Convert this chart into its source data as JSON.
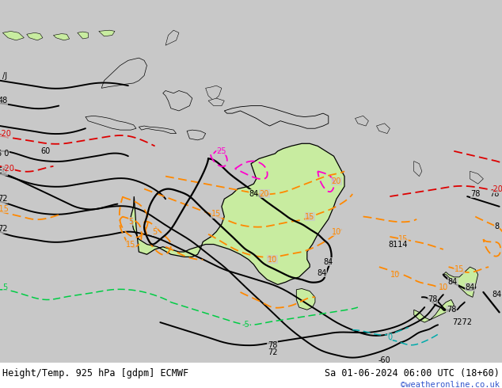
{
  "title_left": "Height/Temp. 925 hPa [gdpm] ECMWF",
  "title_right": "Sa 01-06-2024 06:00 UTC (18+60)",
  "credit": "©weatheronline.co.uk",
  "bg_color": "#c8c8c8",
  "australia_color": "#c8eca0",
  "land_other_color": "#c8c8c8",
  "ocean_color": "#c8c8c8",
  "credit_color": "#3355cc",
  "black": "#000000",
  "orange": "#FF8800",
  "red": "#DD0000",
  "magenta": "#FF00CC",
  "green": "#00CC44",
  "cyan": "#00AAAA",
  "lon_min": 89.0,
  "lon_max": 183.0,
  "lat_min": -55.0,
  "lat_max": 17.0,
  "fig_w": 6.34,
  "fig_h": 4.9,
  "dpi": 100
}
